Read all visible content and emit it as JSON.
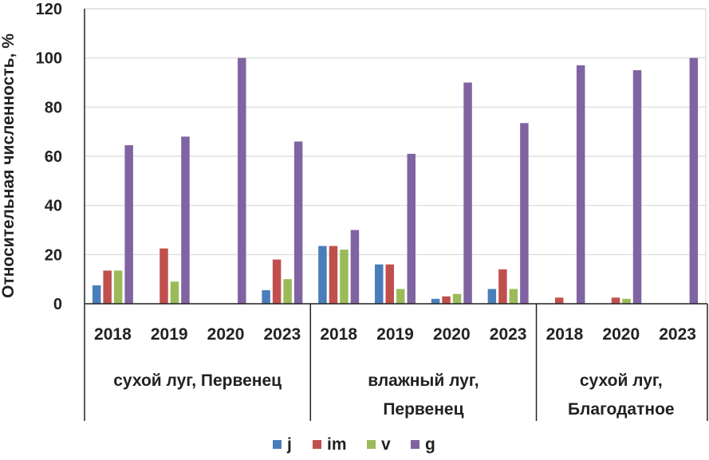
{
  "chart_data": {
    "type": "bar",
    "title": "",
    "ylabel": "Относительная численность, %",
    "xlabel": "",
    "ylim": [
      0,
      120
    ],
    "yticks": [
      0,
      20,
      40,
      60,
      80,
      100,
      120
    ],
    "grid": true,
    "legend_position": "bottom",
    "groups": [
      {
        "label_lines": [
          "сухой луг, Первенец"
        ],
        "categories": [
          "2018",
          "2019",
          "2020",
          "2023"
        ]
      },
      {
        "label_lines": [
          "влажный луг,",
          "Первенец"
        ],
        "categories": [
          "2018",
          "2019",
          "2020",
          "2023"
        ]
      },
      {
        "label_lines": [
          "сухой луг,",
          "Благодатное"
        ],
        "categories": [
          "2018",
          "2020",
          "2023"
        ]
      }
    ],
    "series": [
      {
        "name": "j",
        "color": "#4a7ebb",
        "values": [
          7.5,
          0,
          0,
          5.5,
          23.5,
          16,
          2,
          6,
          0,
          0,
          0
        ]
      },
      {
        "name": "im",
        "color": "#c0504d",
        "values": [
          13.5,
          22.5,
          0,
          18,
          23.5,
          16,
          3,
          14,
          2.5,
          2.5,
          0
        ]
      },
      {
        "name": "v",
        "color": "#9bbb59",
        "values": [
          13.5,
          9,
          0,
          10,
          22,
          6,
          4,
          6,
          0,
          2,
          0
        ]
      },
      {
        "name": "g",
        "color": "#8064a2",
        "values": [
          64.5,
          68,
          100,
          66,
          30,
          61,
          90,
          73.5,
          97,
          95,
          100
        ]
      }
    ]
  }
}
